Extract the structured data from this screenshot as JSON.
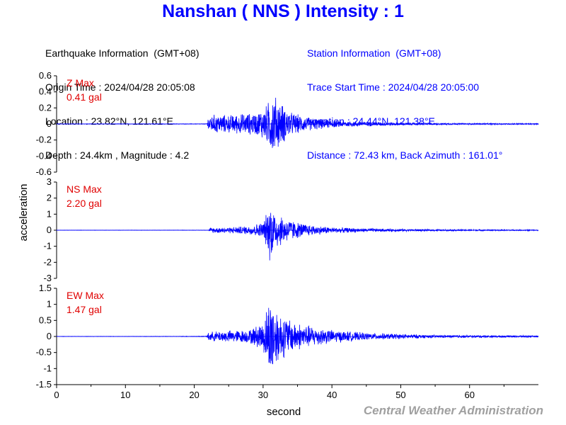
{
  "title": "Nanshan ( NNS ) Intensity : 1",
  "earthquake_info": {
    "heading": "Earthquake Information  (GMT+08)",
    "origin_time": "Origin Time : 2024/04/28 20:05:08",
    "location": "Location : 23.82°N, 121.61°E",
    "depth_magnitude": "Depth : 24.4km , Magnitude : 4.2"
  },
  "station_info": {
    "heading": "Station Information  (GMT+08)",
    "trace_start": "Trace Start Time : 2024/04/28 20:05:00",
    "location": "Location : 24.44°N, 121.38°E",
    "distance": "Distance : 72.43 km, Back Azimuth : 161.01°"
  },
  "credit": "Central Weather Administration",
  "colors": {
    "trace": "#0000ff",
    "max_label": "#e00000",
    "title": "#0000ff"
  },
  "chart_data": {
    "type": "line",
    "xlabel": "second",
    "ylabel": "acceleration",
    "xlim": [
      0,
      70
    ],
    "xticks": [
      0,
      10,
      20,
      30,
      40,
      50,
      60
    ],
    "panels": [
      {
        "component": "Z",
        "max_label": "Z Max",
        "max_value": "0.41 gal",
        "ylim": [
          -0.6,
          0.6
        ],
        "yticks": [
          -0.6,
          -0.4,
          -0.2,
          0,
          0.2,
          0.4,
          0.6
        ],
        "ytick_labels": [
          "-0.6",
          "-0.4",
          "-0.2",
          "0",
          "0.2",
          "0.4",
          "0.6"
        ],
        "envelope": [
          [
            0,
            0.003
          ],
          [
            21.8,
            0.004
          ],
          [
            22.0,
            0.1
          ],
          [
            23,
            0.13
          ],
          [
            25,
            0.12
          ],
          [
            27,
            0.14
          ],
          [
            29,
            0.15
          ],
          [
            30.5,
            0.25
          ],
          [
            31,
            0.36
          ],
          [
            31.5,
            0.41
          ],
          [
            32.5,
            0.3
          ],
          [
            34,
            0.16
          ],
          [
            36,
            0.1
          ],
          [
            40,
            0.05
          ],
          [
            45,
            0.03
          ],
          [
            55,
            0.012
          ],
          [
            70,
            0.008
          ]
        ]
      },
      {
        "component": "NS",
        "max_label": "NS Max",
        "max_value": "2.20 gal",
        "ylim": [
          -3,
          3
        ],
        "yticks": [
          -3,
          -2,
          -1,
          0,
          1,
          2,
          3
        ],
        "ytick_labels": [
          "-3",
          "-2",
          "-1",
          "0",
          "1",
          "2",
          "3"
        ],
        "envelope": [
          [
            0,
            0.01
          ],
          [
            22.1,
            0.012
          ],
          [
            22.3,
            0.18
          ],
          [
            25,
            0.2
          ],
          [
            28,
            0.3
          ],
          [
            30,
            0.55
          ],
          [
            30.8,
            1.5
          ],
          [
            31.0,
            2.2
          ],
          [
            31.6,
            1.4
          ],
          [
            33,
            0.9
          ],
          [
            35,
            0.55
          ],
          [
            37,
            0.35
          ],
          [
            40,
            0.2
          ],
          [
            45,
            0.12
          ],
          [
            55,
            0.06
          ],
          [
            70,
            0.035
          ]
        ]
      },
      {
        "component": "EW",
        "max_label": "EW Max",
        "max_value": "1.47 gal",
        "ylim": [
          -1.5,
          1.5
        ],
        "yticks": [
          -1.5,
          -1,
          -0.5,
          0,
          0.5,
          1,
          1.5
        ],
        "ytick_labels": [
          "-1.5",
          "-1",
          "-0.5",
          "0",
          "0.5",
          "1",
          "1.5"
        ],
        "envelope": [
          [
            0,
            0.005
          ],
          [
            17,
            0.008
          ],
          [
            19,
            0.01
          ],
          [
            21.8,
            0.012
          ],
          [
            22.0,
            0.15
          ],
          [
            25,
            0.2
          ],
          [
            28,
            0.22
          ],
          [
            30,
            0.5
          ],
          [
            31,
            1.35
          ],
          [
            31.3,
            1.47
          ],
          [
            32,
            0.9
          ],
          [
            34,
            0.55
          ],
          [
            36,
            0.4
          ],
          [
            40,
            0.22
          ],
          [
            45,
            0.12
          ],
          [
            55,
            0.05
          ],
          [
            70,
            0.03
          ]
        ]
      }
    ]
  }
}
